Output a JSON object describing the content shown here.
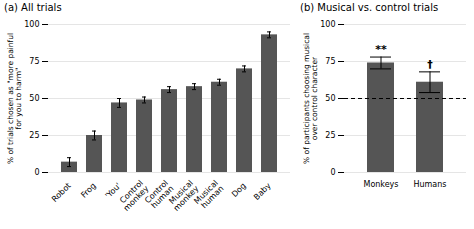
{
  "chart_data": [
    {
      "type": "bar",
      "title": "(a) All trials",
      "categories": [
        "Robot",
        "Frog",
        "'You'",
        "Control\nmonkey",
        "Control\nhuman",
        "Musical\nmonkey",
        "Musical\nhuman",
        "Dog",
        "Baby"
      ],
      "values": [
        7,
        25,
        47,
        49,
        56,
        58,
        61,
        70,
        93
      ],
      "errors": [
        3,
        3,
        3,
        2,
        2,
        2,
        2,
        2,
        2
      ],
      "ylabel": "% of trials chosen as \"more painful\nfor you to harm\"",
      "ylim": [
        0,
        100
      ],
      "yticks": [
        0,
        25,
        50,
        75,
        100
      ],
      "color": "#555555",
      "grid": true
    },
    {
      "type": "bar",
      "title": "(b) Musical vs. control trials",
      "categories": [
        "Monkeys",
        "Humans"
      ],
      "values": [
        74,
        61
      ],
      "errors": [
        4,
        7
      ],
      "ylabel": "% of participants choosing musical\nover control character",
      "ylim": [
        0,
        100
      ],
      "yticks": [
        0,
        25,
        50,
        75,
        100
      ],
      "color": "#555555",
      "grid": true,
      "hline": 50,
      "annotations": [
        "**",
        "†"
      ]
    }
  ]
}
